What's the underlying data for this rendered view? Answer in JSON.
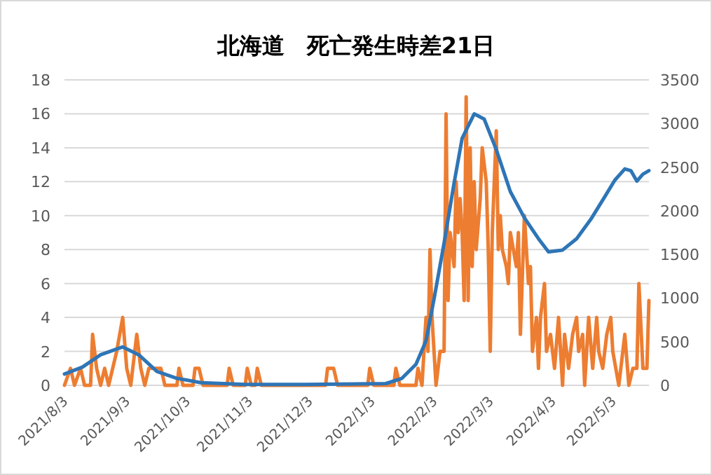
{
  "chart_data": {
    "type": "line",
    "title": "北海道　死亡発生時差21日",
    "xlim": [
      "2021-08-03",
      "2022-05-21"
    ],
    "xticks": [
      {
        "value": "2021-08-03",
        "label": "2021/8/3"
      },
      {
        "value": "2021-09-03",
        "label": "2021/9/3"
      },
      {
        "value": "2021-10-03",
        "label": "2021/10/3"
      },
      {
        "value": "2021-11-03",
        "label": "2021/11/3"
      },
      {
        "value": "2021-12-03",
        "label": "2021/12/3"
      },
      {
        "value": "2022-01-03",
        "label": "2022/1/3"
      },
      {
        "value": "2022-02-03",
        "label": "2022/2/3"
      },
      {
        "value": "2022-03-03",
        "label": "2022/3/3"
      },
      {
        "value": "2022-04-03",
        "label": "2022/4/3"
      },
      {
        "value": "2022-05-03",
        "label": "2022/5/3"
      }
    ],
    "ylim": [
      0,
      18
    ],
    "yticks": [
      0,
      2,
      4,
      6,
      8,
      10,
      12,
      14,
      16,
      18
    ],
    "y2lim": [
      0,
      3500
    ],
    "y2ticks": [
      0,
      500,
      1000,
      1500,
      2000,
      2500,
      3000,
      3500
    ],
    "grid": "y",
    "series": [
      {
        "color": "#ed7d31",
        "axis": "y",
        "x": [
          "2021-08-03",
          "2021-08-06",
          "2021-08-08",
          "2021-08-11",
          "2021-08-13",
          "2021-08-16",
          "2021-08-17",
          "2021-08-19",
          "2021-08-21",
          "2021-08-23",
          "2021-08-25",
          "2021-08-29",
          "2021-09-01",
          "2021-09-03",
          "2021-09-05",
          "2021-09-08",
          "2021-09-10",
          "2021-09-12",
          "2021-09-14",
          "2021-09-17",
          "2021-09-20",
          "2021-09-22",
          "2021-09-28",
          "2021-09-29",
          "2021-10-01",
          "2021-10-06",
          "2021-10-07",
          "2021-10-09",
          "2021-10-11",
          "2021-10-23",
          "2021-10-24",
          "2021-10-26",
          "2021-11-01",
          "2021-11-02",
          "2021-11-04",
          "2021-11-06",
          "2021-11-07",
          "2021-11-09",
          "2021-12-11",
          "2021-12-12",
          "2021-12-15",
          "2021-12-17",
          "2022-01-01",
          "2022-01-02",
          "2022-01-04",
          "2022-01-14",
          "2022-01-15",
          "2022-01-17",
          "2022-01-25",
          "2022-01-26",
          "2022-01-28",
          "2022-01-30",
          "2022-01-31",
          "2022-02-01",
          "2022-02-02",
          "2022-02-03",
          "2022-02-04",
          "2022-02-06",
          "2022-02-07",
          "2022-02-08",
          "2022-02-09",
          "2022-02-10",
          "2022-02-11",
          "2022-02-13",
          "2022-02-14",
          "2022-02-15",
          "2022-02-16",
          "2022-02-17",
          "2022-02-18",
          "2022-02-19",
          "2022-02-20",
          "2022-02-21",
          "2022-02-22",
          "2022-02-23",
          "2022-02-24",
          "2022-02-26",
          "2022-02-27",
          "2022-02-28",
          "2022-03-01",
          "2022-03-02",
          "2022-03-03",
          "2022-03-04",
          "2022-03-06",
          "2022-03-07",
          "2022-03-08",
          "2022-03-09",
          "2022-03-11",
          "2022-03-12",
          "2022-03-13",
          "2022-03-16",
          "2022-03-17",
          "2022-03-18",
          "2022-03-20",
          "2022-03-22",
          "2022-03-23",
          "2022-03-24",
          "2022-03-26",
          "2022-03-27",
          "2022-03-28",
          "2022-03-30",
          "2022-03-31",
          "2022-04-02",
          "2022-04-04",
          "2022-04-06",
          "2022-04-08",
          "2022-04-09",
          "2022-04-11",
          "2022-04-13",
          "2022-04-15",
          "2022-04-16",
          "2022-04-18",
          "2022-04-19",
          "2022-04-21",
          "2022-04-23",
          "2022-04-25",
          "2022-04-26",
          "2022-04-28",
          "2022-04-30",
          "2022-05-02",
          "2022-05-03",
          "2022-05-06",
          "2022-05-07",
          "2022-05-09",
          "2022-05-11",
          "2022-05-13",
          "2022-05-15",
          "2022-05-16",
          "2022-05-18",
          "2022-05-20",
          "2022-05-21"
        ],
        "values": [
          0,
          1,
          0,
          1,
          0,
          0,
          3,
          1,
          0,
          1,
          0,
          2,
          4,
          1,
          0,
          3,
          1,
          0,
          1,
          1,
          1,
          0,
          0,
          1,
          0,
          0,
          1,
          1,
          0,
          0,
          1,
          0,
          0,
          1,
          0,
          0,
          1,
          0,
          0,
          1,
          1,
          0,
          0,
          1,
          0,
          0,
          1,
          0,
          0,
          1,
          0,
          4,
          2,
          8,
          4,
          2,
          0,
          2,
          2,
          2,
          16,
          5,
          9,
          7,
          12,
          9,
          11,
          9,
          5,
          17,
          5,
          14,
          7,
          12,
          8,
          11,
          14,
          13,
          12,
          8,
          2,
          9,
          15,
          8,
          10,
          8,
          7,
          6,
          9,
          7,
          9,
          3,
          10,
          6,
          7,
          2,
          4,
          1,
          4,
          6,
          2,
          3,
          1,
          4,
          0,
          3,
          1,
          3,
          4,
          2,
          3,
          0,
          4,
          1,
          4,
          2,
          1,
          3,
          4,
          2,
          0,
          1,
          3,
          0,
          1,
          1,
          6,
          1,
          1,
          5
        ]
      },
      {
        "color": "#2e75b6",
        "axis": "y2",
        "x": [
          "2021-08-03",
          "2021-08-12",
          "2021-08-21",
          "2021-09-01",
          "2021-09-09",
          "2021-09-18",
          "2021-09-28",
          "2021-10-10",
          "2021-11-01",
          "2021-12-01",
          "2022-01-10",
          "2022-01-18",
          "2022-01-25",
          "2022-01-30",
          "2022-02-03",
          "2022-02-08",
          "2022-02-13",
          "2022-02-17",
          "2022-02-23",
          "2022-02-28",
          "2022-03-06",
          "2022-03-13",
          "2022-03-20",
          "2022-03-27",
          "2022-04-01",
          "2022-04-08",
          "2022-04-15",
          "2022-04-22",
          "2022-04-29",
          "2022-05-04",
          "2022-05-09",
          "2022-05-12",
          "2022-05-15",
          "2022-05-18",
          "2022-05-21"
        ],
        "values": [
          130,
          210,
          350,
          440,
          350,
          160,
          80,
          30,
          10,
          10,
          20,
          80,
          240,
          510,
          990,
          1630,
          2320,
          2830,
          3110,
          3050,
          2700,
          2220,
          1920,
          1680,
          1530,
          1550,
          1680,
          1900,
          2160,
          2350,
          2480,
          2460,
          2340,
          2420,
          2460
        ]
      }
    ]
  }
}
